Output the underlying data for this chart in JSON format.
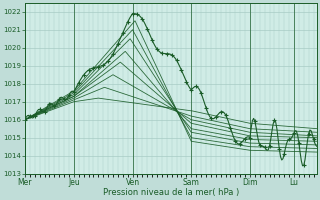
{
  "xlabel": "Pression niveau de la mer( hPa )",
  "bg_color": "#c0ddd8",
  "plot_bg_color": "#d0ece6",
  "grid_color": "#a8ccc5",
  "line_color": "#1a5c28",
  "ylim": [
    1013.0,
    1022.5
  ],
  "yticks": [
    1013,
    1014,
    1015,
    1016,
    1017,
    1018,
    1019,
    1020,
    1021,
    1022
  ],
  "day_labels": [
    "Mer",
    "Jeu",
    "Ven",
    "Sam",
    "Dim",
    "Lu"
  ],
  "day_positions": [
    0,
    40,
    88,
    136,
    184,
    220
  ],
  "total_points": 240,
  "figsize": [
    3.2,
    2.0
  ],
  "dpi": 100
}
